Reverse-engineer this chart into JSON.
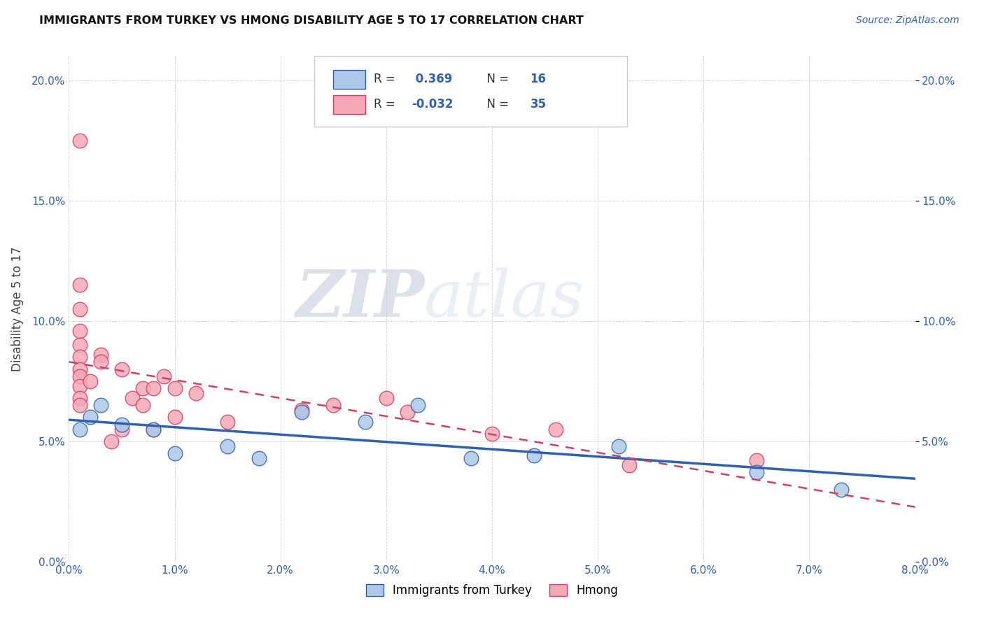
{
  "title": "IMMIGRANTS FROM TURKEY VS HMONG DISABILITY AGE 5 TO 17 CORRELATION CHART",
  "source": "Source: ZipAtlas.com",
  "ylabel_label": "Disability Age 5 to 17",
  "xlim": [
    0.0,
    0.08
  ],
  "ylim": [
    0.0,
    0.21
  ],
  "xticks": [
    0.0,
    0.01,
    0.02,
    0.03,
    0.04,
    0.05,
    0.06,
    0.07,
    0.08
  ],
  "yticks": [
    0.0,
    0.05,
    0.1,
    0.15,
    0.2
  ],
  "turkey_R": 0.369,
  "turkey_N": 16,
  "hmong_R": -0.032,
  "hmong_N": 35,
  "turkey_color": "#adc8e8",
  "hmong_color": "#f4a8b8",
  "turkey_line_color": "#3060b0",
  "hmong_line_color": "#d04060",
  "watermark_zip": "ZIP",
  "watermark_atlas": "atlas",
  "turkey_x": [
    0.001,
    0.002,
    0.003,
    0.005,
    0.008,
    0.01,
    0.015,
    0.018,
    0.022,
    0.028,
    0.033,
    0.038,
    0.044,
    0.052,
    0.065,
    0.073
  ],
  "turkey_y": [
    0.055,
    0.06,
    0.065,
    0.057,
    0.055,
    0.045,
    0.048,
    0.043,
    0.062,
    0.058,
    0.065,
    0.043,
    0.044,
    0.048,
    0.037,
    0.03
  ],
  "hmong_x": [
    0.001,
    0.001,
    0.001,
    0.001,
    0.001,
    0.001,
    0.001,
    0.001,
    0.001,
    0.001,
    0.001,
    0.002,
    0.003,
    0.003,
    0.004,
    0.005,
    0.005,
    0.006,
    0.007,
    0.007,
    0.008,
    0.008,
    0.009,
    0.01,
    0.01,
    0.012,
    0.015,
    0.022,
    0.025,
    0.03,
    0.032,
    0.04,
    0.046,
    0.053,
    0.065
  ],
  "hmong_y": [
    0.175,
    0.115,
    0.105,
    0.096,
    0.09,
    0.085,
    0.08,
    0.077,
    0.073,
    0.068,
    0.065,
    0.075,
    0.086,
    0.083,
    0.05,
    0.08,
    0.055,
    0.068,
    0.072,
    0.065,
    0.072,
    0.055,
    0.077,
    0.072,
    0.06,
    0.07,
    0.058,
    0.063,
    0.065,
    0.068,
    0.062,
    0.053,
    0.055,
    0.04,
    0.042
  ]
}
